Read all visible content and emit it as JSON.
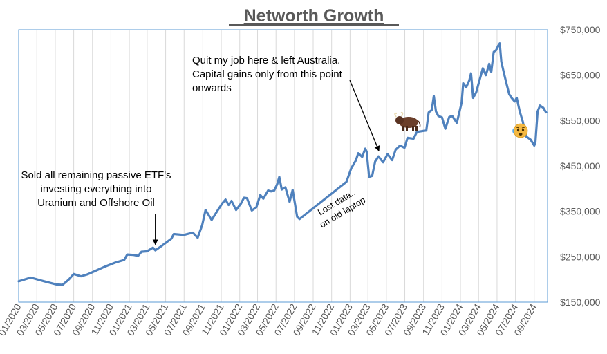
{
  "chart_data": {
    "type": "line",
    "title": "Networth Growth",
    "xlabel": "",
    "ylabel": "",
    "x_range": [
      "2020-01-01",
      "2024-10-15"
    ],
    "ylim": [
      150000,
      750000
    ],
    "y_ticks": [
      150000,
      250000,
      350000,
      450000,
      550000,
      650000,
      750000
    ],
    "y_tick_labels": [
      "$150,000",
      "$250,000",
      "$350,000",
      "$450,000",
      "$550,000",
      "$650,000",
      "$750,000"
    ],
    "x_tick_labels": [
      "01/2020",
      "03/2020",
      "05/2020",
      "07/2020",
      "09/2020",
      "11/2020",
      "01/2021",
      "03/2021",
      "05/2021",
      "07/2021",
      "09/2021",
      "11/2021",
      "01/2022",
      "03/2022",
      "05/2022",
      "07/2022",
      "09/2022",
      "11/2022",
      "01/2023",
      "03/2023",
      "05/2023",
      "07/2023",
      "09/2023",
      "11/2023",
      "01/2024",
      "03/2024",
      "05/2024",
      "07/2024",
      "09/2024"
    ],
    "grid": "vertical",
    "legend": "none",
    "line_color": "#4f81bd",
    "series": [
      {
        "points": [
          [
            "2020-01-01",
            196000
          ],
          [
            "2020-02-10",
            204000
          ],
          [
            "2020-03-25",
            196000
          ],
          [
            "2020-05-05",
            189000
          ],
          [
            "2020-05-25",
            188000
          ],
          [
            "2020-06-15",
            200000
          ],
          [
            "2020-07-01",
            212000
          ],
          [
            "2020-07-25",
            207000
          ],
          [
            "2020-08-15",
            211000
          ],
          [
            "2020-09-15",
            220000
          ],
          [
            "2020-10-15",
            229000
          ],
          [
            "2020-11-15",
            237000
          ],
          [
            "2020-12-15",
            243000
          ],
          [
            "2020-12-25",
            255000
          ],
          [
            "2021-01-15",
            254000
          ],
          [
            "2021-01-30",
            252000
          ],
          [
            "2021-02-10",
            261000
          ],
          [
            "2021-02-28",
            262000
          ],
          [
            "2021-03-20",
            270000
          ],
          [
            "2021-03-28",
            264000
          ],
          [
            "2021-04-20",
            275000
          ],
          [
            "2021-05-20",
            290000
          ],
          [
            "2021-05-28",
            300000
          ],
          [
            "2021-06-30",
            298000
          ],
          [
            "2021-07-30",
            303000
          ],
          [
            "2021-08-15",
            292000
          ],
          [
            "2021-08-30",
            320000
          ],
          [
            "2021-09-10",
            353000
          ],
          [
            "2021-09-30",
            331000
          ],
          [
            "2021-10-20",
            352000
          ],
          [
            "2021-11-05",
            368000
          ],
          [
            "2021-11-15",
            376000
          ],
          [
            "2021-11-25",
            364000
          ],
          [
            "2021-12-05",
            373000
          ],
          [
            "2021-12-20",
            353000
          ],
          [
            "2022-01-05",
            367000
          ],
          [
            "2022-01-15",
            380000
          ],
          [
            "2022-01-25",
            379000
          ],
          [
            "2022-02-10",
            352000
          ],
          [
            "2022-02-25",
            359000
          ],
          [
            "2022-03-10",
            386000
          ],
          [
            "2022-03-20",
            378000
          ],
          [
            "2022-04-05",
            396000
          ],
          [
            "2022-04-15",
            394000
          ],
          [
            "2022-04-25",
            396000
          ],
          [
            "2022-05-05",
            410000
          ],
          [
            "2022-05-12",
            426000
          ],
          [
            "2022-05-20",
            398000
          ],
          [
            "2022-06-01",
            403000
          ],
          [
            "2022-06-15",
            371000
          ],
          [
            "2022-06-25",
            397000
          ],
          [
            "2022-07-10",
            338000
          ],
          [
            "2022-07-18",
            333000
          ],
          [
            "2022-12-20",
            415000
          ],
          [
            "2023-01-05",
            445000
          ],
          [
            "2023-01-20",
            462000
          ],
          [
            "2023-01-28",
            478000
          ],
          [
            "2023-02-10",
            470000
          ],
          [
            "2023-02-20",
            488000
          ],
          [
            "2023-02-25",
            481000
          ],
          [
            "2023-03-05",
            426000
          ],
          [
            "2023-03-15",
            428000
          ],
          [
            "2023-03-25",
            460000
          ],
          [
            "2023-04-05",
            471000
          ],
          [
            "2023-04-20",
            458000
          ],
          [
            "2023-05-05",
            476000
          ],
          [
            "2023-05-20",
            463000
          ],
          [
            "2023-06-01",
            486000
          ],
          [
            "2023-06-15",
            495000
          ],
          [
            "2023-06-30",
            490000
          ],
          [
            "2023-07-10",
            512000
          ],
          [
            "2023-07-30",
            510000
          ],
          [
            "2023-08-10",
            525000
          ],
          [
            "2023-08-30",
            527000
          ],
          [
            "2023-09-10",
            528000
          ],
          [
            "2023-09-18",
            568000
          ],
          [
            "2023-09-28",
            573000
          ],
          [
            "2023-10-05",
            604000
          ],
          [
            "2023-10-12",
            570000
          ],
          [
            "2023-10-20",
            560000
          ],
          [
            "2023-11-01",
            557000
          ],
          [
            "2023-11-12",
            532000
          ],
          [
            "2023-11-25",
            558000
          ],
          [
            "2023-12-05",
            560000
          ],
          [
            "2023-12-20",
            545000
          ],
          [
            "2024-01-05",
            590000
          ],
          [
            "2024-01-10",
            632000
          ],
          [
            "2024-01-20",
            623000
          ],
          [
            "2024-01-30",
            638000
          ],
          [
            "2024-02-05",
            654000
          ],
          [
            "2024-02-12",
            600000
          ],
          [
            "2024-02-22",
            612000
          ],
          [
            "2024-03-05",
            641000
          ],
          [
            "2024-03-15",
            665000
          ],
          [
            "2024-03-25",
            650000
          ],
          [
            "2024-04-05",
            675000
          ],
          [
            "2024-04-12",
            657000
          ],
          [
            "2024-04-20",
            701000
          ],
          [
            "2024-04-28",
            705000
          ],
          [
            "2024-05-05",
            715000
          ],
          [
            "2024-05-10",
            720000
          ],
          [
            "2024-05-15",
            680000
          ],
          [
            "2024-05-22",
            660000
          ],
          [
            "2024-06-01",
            632000
          ],
          [
            "2024-06-10",
            608000
          ],
          [
            "2024-06-18",
            600000
          ],
          [
            "2024-06-28",
            592000
          ],
          [
            "2024-07-05",
            600000
          ],
          [
            "2024-07-15",
            570000
          ],
          [
            "2024-07-25",
            548000
          ],
          [
            "2024-08-05",
            515000
          ],
          [
            "2024-08-20",
            508000
          ],
          [
            "2024-09-01",
            495000
          ],
          [
            "2024-09-05",
            503000
          ],
          [
            "2024-09-12",
            570000
          ],
          [
            "2024-09-20",
            583000
          ],
          [
            "2024-10-01",
            578000
          ],
          [
            "2024-10-10",
            568000
          ]
        ]
      }
    ],
    "annotations": [
      {
        "lines": [
          "Sold all remaining passive ETF's",
          "investing everything into",
          "Uranium and Offshore Oil"
        ],
        "target": [
          "2021-03-28",
          265000
        ],
        "style": "arrow"
      },
      {
        "lines": [
          "Quit my job here & left Australia.",
          "Capital gains only from this point",
          "onwards"
        ],
        "target": [
          "2023-04-20",
          456000
        ],
        "style": "arrow"
      },
      {
        "lines": [
          "Lost data..",
          "on old laptop"
        ],
        "style": "rotated"
      }
    ],
    "icons": [
      "bull-icon",
      "worried-face-icon"
    ]
  }
}
